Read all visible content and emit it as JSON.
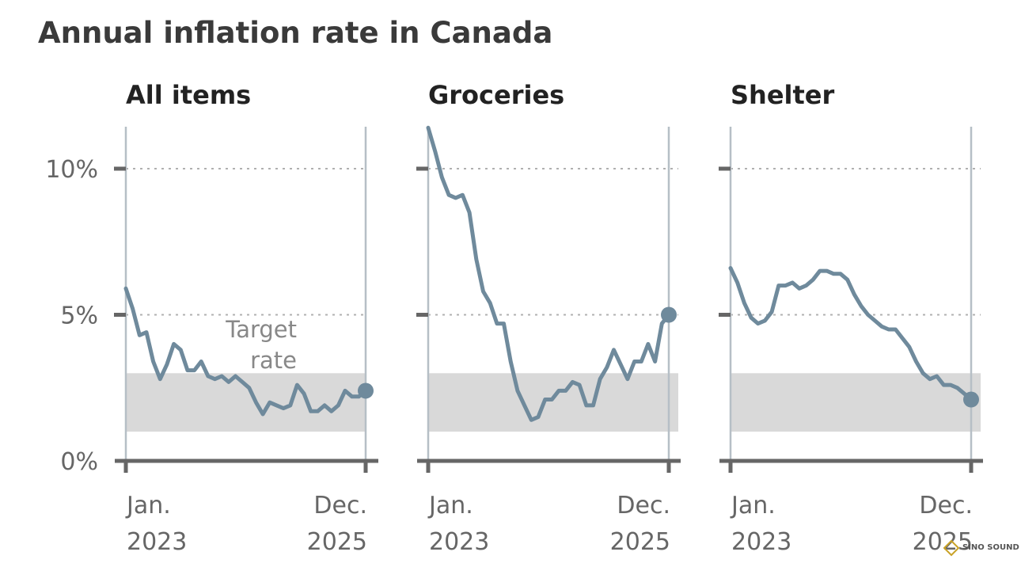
{
  "title": "Annual inflation rate in Canada",
  "colors": {
    "line": "#6f8a9c",
    "band": "#d9d9d9",
    "axis": "#666666",
    "vline": "#b6bfc6",
    "grid": "#b0b0b0",
    "watermark": "#c9a227"
  },
  "watermark": "SINO SOUND",
  "chart_data": [
    {
      "type": "line",
      "title": "All items",
      "ylim": [
        0,
        11.5
      ],
      "yticks": [
        0,
        5,
        10
      ],
      "ytick_labels": [
        "0%",
        "5%",
        "10%"
      ],
      "xtick_labels": [
        [
          "Jan.",
          "2023"
        ],
        [
          "Dec.",
          "2025"
        ]
      ],
      "target_band": [
        1,
        3
      ],
      "annotation": [
        "Target",
        "rate"
      ],
      "grid": "dotted at 5% and 10%",
      "end_marker": true,
      "values": [
        5.9,
        5.2,
        4.3,
        4.4,
        3.4,
        2.8,
        3.3,
        4.0,
        3.8,
        3.1,
        3.1,
        3.4,
        2.9,
        2.8,
        2.9,
        2.7,
        2.9,
        2.7,
        2.5,
        2.0,
        1.6,
        2.0,
        1.9,
        1.8,
        1.9,
        2.6,
        2.3,
        1.7,
        1.7,
        1.9,
        1.7,
        1.9,
        2.4,
        2.2,
        2.2,
        2.4
      ]
    },
    {
      "type": "line",
      "title": "Groceries",
      "ylim": [
        0,
        11.5
      ],
      "yticks": [
        0,
        5,
        10
      ],
      "xtick_labels": [
        [
          "Jan.",
          "2023"
        ],
        [
          "Dec.",
          "2025"
        ]
      ],
      "target_band": [
        1,
        3
      ],
      "grid": "dotted at 5% and 10%",
      "end_marker": true,
      "values": [
        11.4,
        10.6,
        9.7,
        9.1,
        9.0,
        9.1,
        8.5,
        6.9,
        5.8,
        5.4,
        4.7,
        4.7,
        3.4,
        2.4,
        1.9,
        1.4,
        1.5,
        2.1,
        2.1,
        2.4,
        2.4,
        2.7,
        2.6,
        1.9,
        1.9,
        2.8,
        3.2,
        3.8,
        3.3,
        2.8,
        3.4,
        3.4,
        4.0,
        3.4,
        4.7,
        5.0
      ]
    },
    {
      "type": "line",
      "title": "Shelter",
      "ylim": [
        0,
        11.5
      ],
      "yticks": [
        0,
        5,
        10
      ],
      "xtick_labels": [
        [
          "Jan.",
          "2023"
        ],
        [
          "Dec.",
          "2025"
        ]
      ],
      "target_band": [
        1,
        3
      ],
      "grid": "dotted at 5% and 10%",
      "end_marker": true,
      "values": [
        6.6,
        6.1,
        5.4,
        4.9,
        4.7,
        4.8,
        5.1,
        6.0,
        6.0,
        6.1,
        5.9,
        6.0,
        6.2,
        6.5,
        6.5,
        6.4,
        6.4,
        6.2,
        5.7,
        5.3,
        5.0,
        4.8,
        4.6,
        4.5,
        4.5,
        4.2,
        3.9,
        3.4,
        3.0,
        2.8,
        2.9,
        2.6,
        2.6,
        2.5,
        2.3,
        2.1
      ]
    }
  ]
}
